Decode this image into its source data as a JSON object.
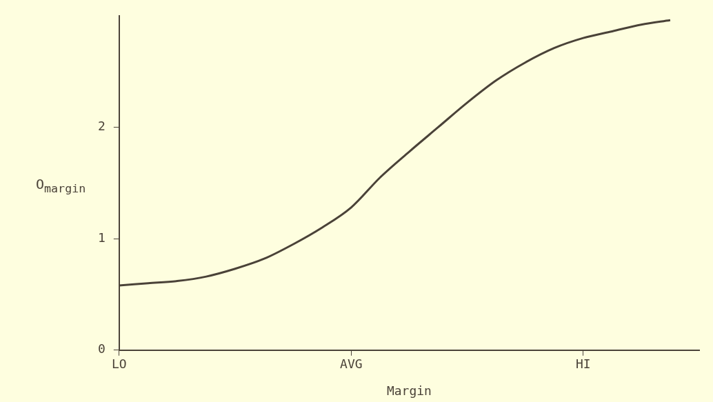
{
  "chart_data": {
    "type": "line",
    "xlabel": "Margin",
    "ylabel": "O$_{margin}$",
    "categories": [
      "LO",
      null,
      null,
      null,
      null,
      null,
      null,
      null,
      "AVG",
      null,
      null,
      null,
      null,
      null,
      null,
      null,
      "HI",
      null,
      null,
      null,
      null
    ],
    "series": [
      {
        "color": "#4a4238",
        "values": [
          0.58,
          0.6,
          0.62,
          0.66,
          0.73,
          0.82,
          0.95,
          1.1,
          1.28,
          1.55,
          1.78,
          2.0,
          2.22,
          2.42,
          2.58,
          2.71,
          2.8,
          2.86,
          2.92,
          2.96,
          null
        ]
      }
    ],
    "ylim": [
      0,
      3
    ],
    "yticks": [
      0,
      1,
      2
    ],
    "grid": false,
    "legend": false,
    "marker": "none",
    "line_style": "solid"
  }
}
